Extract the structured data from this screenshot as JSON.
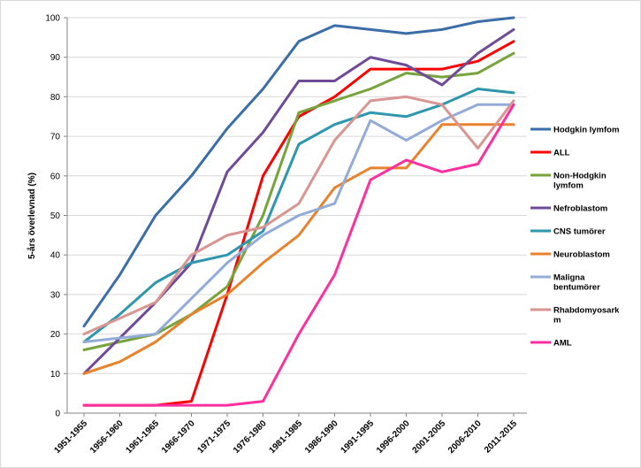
{
  "chart_data": {
    "type": "line",
    "title": "",
    "xlabel": "",
    "ylabel": "5-års överlevnad (%)",
    "ylim": [
      0,
      100
    ],
    "yticks": [
      0,
      10,
      20,
      30,
      40,
      50,
      60,
      70,
      80,
      90,
      100
    ],
    "grid": "horizontal",
    "legend_position": "right",
    "categories": [
      "1951-1955",
      "1956-1960",
      "1961-1965",
      "1966-1970",
      "1971-1975",
      "1976-1980",
      "1981-1985",
      "1986-1990",
      "1991-1995",
      "1996-2000",
      "2001-2005",
      "2006-2010",
      "2011-2015"
    ],
    "series": [
      {
        "name": "Hodgkin lymfom",
        "legend_lines": [
          "Hodgkin lymfom"
        ],
        "color": "#3b6ea8",
        "values": [
          22,
          35,
          50,
          60,
          72,
          82,
          94,
          98,
          97,
          96,
          97,
          99,
          100
        ]
      },
      {
        "name": "ALL",
        "legend_lines": [
          "ALL"
        ],
        "color": "#ff0000",
        "values": [
          2,
          2,
          2,
          3,
          30,
          60,
          75,
          80,
          87,
          87,
          87,
          89,
          94
        ]
      },
      {
        "name": "Non-Hodgkin lymfom",
        "legend_lines": [
          "Non-Hodgkin",
          "lymfom"
        ],
        "color": "#77a33c",
        "values": [
          16,
          18,
          20,
          25,
          32,
          50,
          76,
          79,
          82,
          86,
          85,
          86,
          91
        ]
      },
      {
        "name": "Nefroblastom",
        "legend_lines": [
          "Nefroblastom"
        ],
        "color": "#6f4a97",
        "values": [
          10,
          19,
          28,
          38,
          61,
          71,
          84,
          84,
          90,
          88,
          83,
          91,
          97
        ]
      },
      {
        "name": "CNS tumörer",
        "legend_lines": [
          "CNS tumörer"
        ],
        "color": "#2e97ad",
        "values": [
          18,
          25,
          33,
          38,
          40,
          46,
          68,
          73,
          76,
          75,
          78,
          82,
          81
        ]
      },
      {
        "name": "Neuroblastom",
        "legend_lines": [
          "Neuroblastom"
        ],
        "color": "#e8822c",
        "values": [
          10,
          13,
          18,
          25,
          30,
          38,
          45,
          57,
          62,
          62,
          73,
          73,
          73
        ]
      },
      {
        "name": "Maligna bentumörer",
        "legend_lines": [
          "Maligna",
          "bentumörer"
        ],
        "color": "#93abd7",
        "values": [
          18,
          19,
          20,
          29,
          38,
          45,
          50,
          53,
          74,
          69,
          74,
          78,
          78
        ]
      },
      {
        "name": "Rhabdomyosarkom",
        "legend_lines": [
          "Rhabdomyosark",
          "m"
        ],
        "color": "#d99592",
        "values": [
          20,
          24,
          28,
          40,
          45,
          47,
          53,
          69,
          79,
          80,
          78,
          67,
          79
        ]
      },
      {
        "name": "AML",
        "legend_lines": [
          "AML"
        ],
        "color": "#ff2fa0",
        "values": [
          2,
          2,
          2,
          2,
          2,
          3,
          20,
          35,
          59,
          64,
          61,
          63,
          78
        ]
      }
    ]
  }
}
